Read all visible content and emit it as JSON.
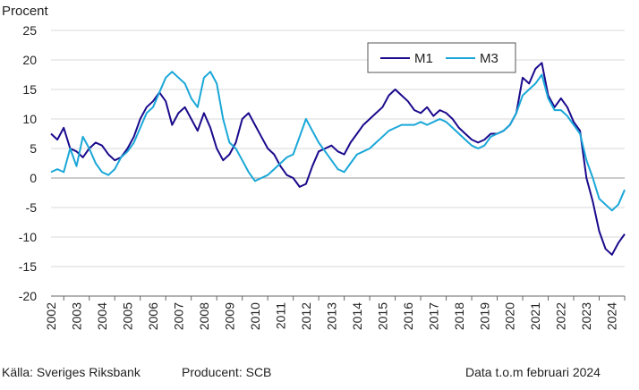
{
  "footer": {
    "source": "Källa: Sveriges Riksbank",
    "producer": "Producent: SCB",
    "data_through": "Data t.o.m februari 2024"
  },
  "colors": {
    "m1": "#1a0a8c",
    "m3": "#1aa7d8",
    "grid": "#d9d9d9"
  },
  "chart_data": {
    "type": "line",
    "ylabel": "Procent",
    "xlim": [
      2001.5,
      2024.0
    ],
    "ylim": [
      -20,
      25
    ],
    "yticks": [
      25,
      20,
      15,
      10,
      5,
      0,
      -5,
      -10,
      -15,
      -20
    ],
    "xticks": [
      "2002",
      "2003",
      "2004",
      "2005",
      "2006",
      "2007",
      "2008",
      "2009",
      "2010",
      "2011",
      "2012",
      "2013",
      "2014",
      "2015",
      "2016",
      "2017",
      "2018",
      "2019",
      "2020",
      "2021",
      "2022",
      "2023",
      "2024"
    ],
    "grid": "horizontal",
    "legend": "top-right",
    "series": [
      {
        "name": "M1",
        "color_key": "m1",
        "x": [
          2001.5,
          2001.75,
          2002.0,
          2002.25,
          2002.5,
          2002.75,
          2003.0,
          2003.25,
          2003.5,
          2003.75,
          2004.0,
          2004.25,
          2004.5,
          2004.75,
          2005.0,
          2005.25,
          2005.5,
          2005.75,
          2006.0,
          2006.25,
          2006.5,
          2006.75,
          2007.0,
          2007.25,
          2007.5,
          2007.75,
          2008.0,
          2008.25,
          2008.5,
          2008.75,
          2009.0,
          2009.25,
          2009.5,
          2009.75,
          2010.0,
          2010.25,
          2010.5,
          2010.75,
          2011.0,
          2011.25,
          2011.5,
          2011.75,
          2012.0,
          2012.25,
          2012.5,
          2012.75,
          2013.0,
          2013.25,
          2013.5,
          2013.75,
          2014.0,
          2014.25,
          2014.5,
          2014.75,
          2015.0,
          2015.25,
          2015.5,
          2015.75,
          2016.0,
          2016.25,
          2016.5,
          2016.75,
          2017.0,
          2017.25,
          2017.5,
          2017.75,
          2018.0,
          2018.25,
          2018.5,
          2018.75,
          2019.0,
          2019.25,
          2019.5,
          2019.75,
          2020.0,
          2020.25,
          2020.5,
          2020.75,
          2021.0,
          2021.25,
          2021.5,
          2021.75,
          2022.0,
          2022.25,
          2022.5,
          2022.75,
          2023.0,
          2023.25,
          2023.5,
          2023.75,
          2024.0
        ],
        "y": [
          7.5,
          6.5,
          8.5,
          5.0,
          4.5,
          3.5,
          5.0,
          6.0,
          5.5,
          4.0,
          3.0,
          3.5,
          5.0,
          7.0,
          10.0,
          12.0,
          13.0,
          14.5,
          13.0,
          9.0,
          11.0,
          12.0,
          10.0,
          8.0,
          11.0,
          8.5,
          5.0,
          3.0,
          4.0,
          6.0,
          10.0,
          11.0,
          9.0,
          7.0,
          5.0,
          4.0,
          2.0,
          0.5,
          0.0,
          -1.5,
          -1.0,
          2.0,
          4.5,
          5.0,
          5.5,
          4.5,
          4.0,
          6.0,
          7.5,
          9.0,
          10.0,
          11.0,
          12.0,
          14.0,
          15.0,
          14.0,
          13.0,
          11.5,
          11.0,
          12.0,
          10.5,
          11.5,
          11.0,
          10.0,
          8.5,
          7.5,
          6.5,
          6.0,
          6.5,
          7.5,
          7.5,
          8.0,
          9.0,
          11.0,
          17.0,
          16.0,
          18.5,
          19.5,
          14.0,
          12.0,
          13.5,
          12.0,
          9.5,
          8.0,
          0.0,
          -4.0,
          -9.0,
          -12.0,
          -13.0,
          -11.0,
          -9.5
        ]
      },
      {
        "name": "M3",
        "color_key": "m3",
        "x": [
          2001.5,
          2001.75,
          2002.0,
          2002.25,
          2002.5,
          2002.75,
          2003.0,
          2003.25,
          2003.5,
          2003.75,
          2004.0,
          2004.25,
          2004.5,
          2004.75,
          2005.0,
          2005.25,
          2005.5,
          2005.75,
          2006.0,
          2006.25,
          2006.5,
          2006.75,
          2007.0,
          2007.25,
          2007.5,
          2007.75,
          2008.0,
          2008.25,
          2008.5,
          2008.75,
          2009.0,
          2009.25,
          2009.5,
          2009.75,
          2010.0,
          2010.25,
          2010.5,
          2010.75,
          2011.0,
          2011.25,
          2011.5,
          2011.75,
          2012.0,
          2012.25,
          2012.5,
          2012.75,
          2013.0,
          2013.25,
          2013.5,
          2013.75,
          2014.0,
          2014.25,
          2014.5,
          2014.75,
          2015.0,
          2015.25,
          2015.5,
          2015.75,
          2016.0,
          2016.25,
          2016.5,
          2016.75,
          2017.0,
          2017.25,
          2017.5,
          2017.75,
          2018.0,
          2018.25,
          2018.5,
          2018.75,
          2019.0,
          2019.25,
          2019.5,
          2019.75,
          2020.0,
          2020.25,
          2020.5,
          2020.75,
          2021.0,
          2021.25,
          2021.5,
          2021.75,
          2022.0,
          2022.25,
          2022.5,
          2022.75,
          2023.0,
          2023.25,
          2023.5,
          2023.75,
          2024.0
        ],
        "y": [
          1.0,
          1.5,
          1.0,
          5.0,
          2.0,
          7.0,
          5.0,
          2.5,
          1.0,
          0.5,
          1.5,
          3.5,
          4.5,
          6.0,
          8.5,
          11.0,
          12.0,
          14.5,
          17.0,
          18.0,
          17.0,
          16.0,
          13.5,
          12.0,
          17.0,
          18.0,
          16.0,
          10.0,
          6.0,
          5.0,
          3.0,
          1.0,
          -0.5,
          0.0,
          0.5,
          1.5,
          2.5,
          3.5,
          4.0,
          7.0,
          10.0,
          8.0,
          6.0,
          4.5,
          3.0,
          1.5,
          1.0,
          2.5,
          4.0,
          4.5,
          5.0,
          6.0,
          7.0,
          8.0,
          8.5,
          9.0,
          9.0,
          9.0,
          9.5,
          9.0,
          9.5,
          10.0,
          9.5,
          8.5,
          7.5,
          6.5,
          5.5,
          5.0,
          5.5,
          7.0,
          7.5,
          8.0,
          9.0,
          11.0,
          14.0,
          15.0,
          16.0,
          17.5,
          13.5,
          11.5,
          11.5,
          10.5,
          9.0,
          7.5,
          3.0,
          0.0,
          -3.5,
          -4.5,
          -5.5,
          -4.5,
          -2.0
        ]
      }
    ]
  }
}
